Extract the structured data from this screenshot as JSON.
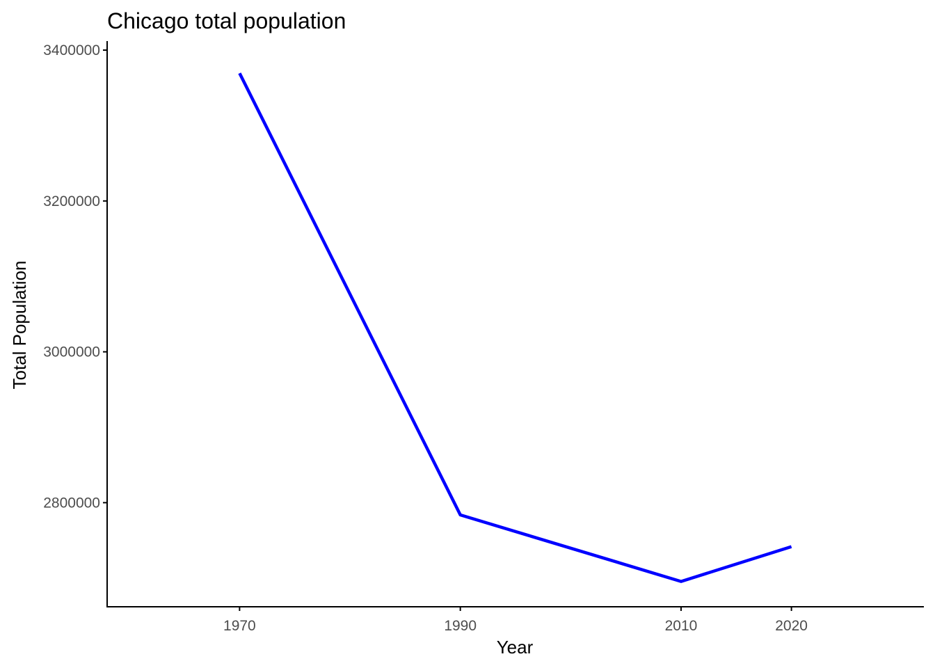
{
  "chart_data": {
    "type": "line",
    "title": "Chicago total population",
    "xlabel": "Year",
    "ylabel": "Total Population",
    "x": [
      1970,
      1990,
      2010,
      2020
    ],
    "series": [
      {
        "values": [
          3369357,
          2783726,
          2695598,
          2741730
        ],
        "color": "#0000ff"
      }
    ],
    "xticks": [
      1970,
      1990,
      2010,
      2020
    ],
    "xtick_labels": [
      "1970",
      "1990",
      "2010",
      "2020"
    ],
    "yticks": [
      2800000,
      3000000,
      3200000,
      3400000
    ],
    "ytick_labels": [
      "2800000",
      "3000000",
      "3200000",
      "3400000"
    ],
    "xlim": [
      1958,
      2032
    ],
    "ylim": [
      2662000,
      3412000
    ],
    "grid": false,
    "legend": "none"
  }
}
